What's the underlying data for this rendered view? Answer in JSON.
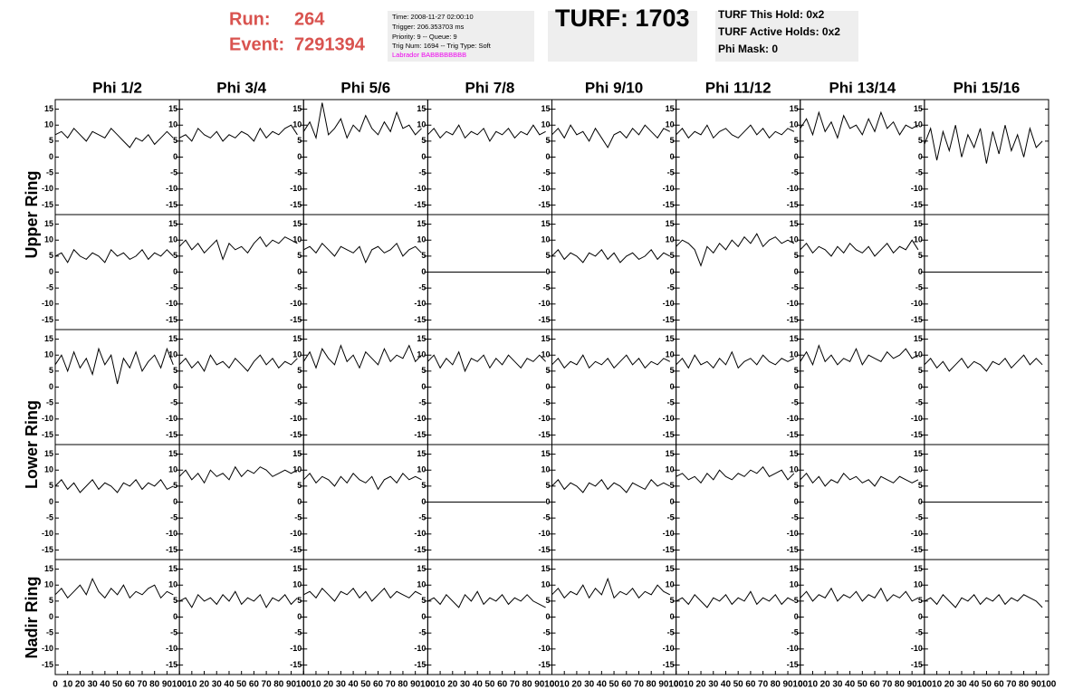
{
  "header": {
    "run_label": "Run:",
    "run": "264",
    "event_label": "Event:",
    "event": "7291394",
    "info": [
      "Time: 2008-11-27 02:00:10",
      "Trigger: 206.353703 ms",
      "Priority: 9 -- Queue: 9",
      "Trig Num: 1694 -- Trig Type: Soft"
    ],
    "labrador": "Labrador BABBBBBBBB",
    "turf": "TURF: 1703",
    "turf_info": [
      "TURF This Hold: 0x2",
      "TURF Active Holds: 0x2",
      "Phi Mask: 0"
    ]
  },
  "columns": [
    "Phi 1/2",
    "Phi 3/4",
    "Phi 5/6",
    "Phi 7/8",
    "Phi 9/10",
    "Phi 11/12",
    "Phi 13/14",
    "Phi 15/16"
  ],
  "rows": [
    "Upper Ring",
    "Lower Ring",
    "Nadir Ring"
  ],
  "axes": {
    "x": [
      0,
      5,
      10,
      15,
      20,
      25,
      30,
      35,
      40,
      45,
      50,
      55,
      60,
      65,
      70,
      75,
      80,
      85,
      90,
      95
    ],
    "xlim": [
      0,
      100
    ],
    "xticks": [
      0,
      10,
      20,
      30,
      40,
      50,
      60,
      70,
      80,
      90,
      100
    ],
    "ylim": [
      -18,
      18
    ],
    "yticks": [
      -15,
      -10,
      -5,
      0,
      5,
      10,
      15
    ]
  },
  "chart_data": [
    {
      "type": "line",
      "values": [
        7,
        8,
        6,
        9,
        7,
        5,
        8,
        7,
        6,
        9,
        7,
        5,
        3,
        6,
        5,
        7,
        4,
        6,
        8,
        6
      ]
    },
    {
      "type": "line",
      "values": [
        6,
        7,
        5,
        9,
        7,
        6,
        8,
        5,
        7,
        6,
        8,
        7,
        5,
        9,
        6,
        8,
        7,
        9,
        10,
        7
      ]
    },
    {
      "type": "line",
      "values": [
        8,
        11,
        6,
        17,
        7,
        9,
        12,
        6,
        10,
        8,
        13,
        9,
        7,
        11,
        8,
        14,
        9,
        10,
        7,
        9
      ]
    },
    {
      "type": "line",
      "values": [
        7,
        9,
        6,
        8,
        7,
        10,
        6,
        8,
        7,
        9,
        5,
        8,
        7,
        9,
        6,
        8,
        7,
        10,
        7,
        8
      ]
    },
    {
      "type": "line",
      "values": [
        7,
        9,
        6,
        10,
        7,
        8,
        5,
        9,
        6,
        3,
        7,
        8,
        6,
        9,
        7,
        10,
        8,
        6,
        9,
        8
      ]
    },
    {
      "type": "line",
      "values": [
        7,
        9,
        6,
        8,
        7,
        10,
        6,
        8,
        9,
        7,
        6,
        8,
        10,
        7,
        9,
        6,
        8,
        7,
        9,
        8
      ]
    },
    {
      "type": "line",
      "values": [
        9,
        12,
        7,
        14,
        8,
        11,
        6,
        13,
        9,
        10,
        7,
        12,
        8,
        14,
        9,
        11,
        7,
        10,
        9,
        10
      ]
    },
    {
      "type": "line",
      "values": [
        4,
        9,
        -1,
        8,
        2,
        10,
        0,
        7,
        3,
        9,
        -2,
        8,
        1,
        10,
        2,
        7,
        0,
        9,
        3,
        5
      ]
    },
    {
      "type": "line",
      "values": [
        5,
        6,
        3,
        7,
        5,
        4,
        6,
        5,
        3,
        7,
        5,
        6,
        4,
        5,
        7,
        4,
        6,
        5,
        7,
        5
      ]
    },
    {
      "type": "line",
      "values": [
        8,
        10,
        7,
        9,
        6,
        8,
        10,
        4,
        9,
        7,
        8,
        6,
        9,
        11,
        8,
        10,
        9,
        11,
        10,
        9
      ]
    },
    {
      "type": "line",
      "values": [
        7,
        8,
        6,
        9,
        7,
        5,
        8,
        7,
        6,
        8,
        3,
        7,
        8,
        6,
        7,
        9,
        5,
        7,
        8,
        6
      ]
    },
    {
      "type": "line",
      "values": [
        0,
        0,
        0,
        0,
        0,
        0,
        0,
        0,
        0,
        0,
        0,
        0,
        0,
        0,
        0,
        0,
        0,
        0,
        0,
        0
      ]
    },
    {
      "type": "line",
      "values": [
        5,
        7,
        4,
        6,
        5,
        3,
        6,
        5,
        7,
        4,
        6,
        3,
        5,
        6,
        4,
        5,
        7,
        4,
        6,
        5
      ]
    },
    {
      "type": "line",
      "values": [
        8,
        10,
        9,
        7,
        2,
        8,
        6,
        9,
        7,
        10,
        8,
        11,
        9,
        12,
        8,
        10,
        11,
        9,
        10,
        9
      ]
    },
    {
      "type": "line",
      "values": [
        7,
        9,
        6,
        8,
        7,
        5,
        8,
        6,
        9,
        7,
        6,
        8,
        5,
        7,
        9,
        6,
        8,
        7,
        10,
        7
      ]
    },
    {
      "type": "line",
      "values": [
        0,
        0,
        0,
        0,
        0,
        0,
        0,
        0,
        0,
        0,
        0,
        0,
        0,
        0,
        0,
        0,
        0,
        0,
        0,
        0
      ]
    },
    {
      "type": "line",
      "values": [
        7,
        10,
        5,
        11,
        6,
        9,
        4,
        12,
        7,
        10,
        1,
        9,
        6,
        11,
        5,
        8,
        10,
        6,
        12,
        7
      ]
    },
    {
      "type": "line",
      "values": [
        7,
        9,
        6,
        8,
        5,
        10,
        7,
        8,
        6,
        9,
        7,
        5,
        8,
        10,
        7,
        9,
        6,
        8,
        7,
        9
      ]
    },
    {
      "type": "line",
      "values": [
        8,
        11,
        6,
        12,
        9,
        7,
        13,
        8,
        10,
        6,
        11,
        9,
        7,
        12,
        8,
        10,
        9,
        13,
        8,
        10
      ]
    },
    {
      "type": "line",
      "values": [
        8,
        10,
        6,
        9,
        7,
        11,
        5,
        9,
        8,
        10,
        6,
        9,
        7,
        10,
        8,
        6,
        9,
        8,
        10,
        8
      ]
    },
    {
      "type": "line",
      "values": [
        7,
        9,
        6,
        8,
        7,
        10,
        6,
        8,
        7,
        9,
        6,
        8,
        10,
        7,
        9,
        6,
        8,
        7,
        9,
        8
      ]
    },
    {
      "type": "line",
      "values": [
        7,
        9,
        6,
        10,
        7,
        8,
        6,
        9,
        7,
        11,
        6,
        8,
        9,
        7,
        10,
        8,
        7,
        9,
        8,
        9
      ]
    },
    {
      "type": "line",
      "values": [
        8,
        11,
        7,
        13,
        8,
        10,
        7,
        9,
        8,
        12,
        7,
        10,
        9,
        8,
        11,
        9,
        10,
        12,
        9,
        10
      ]
    },
    {
      "type": "line",
      "values": [
        7,
        9,
        6,
        8,
        5,
        7,
        9,
        6,
        8,
        7,
        5,
        8,
        7,
        9,
        6,
        8,
        10,
        7,
        9,
        7
      ]
    },
    {
      "type": "line",
      "values": [
        5,
        7,
        4,
        6,
        3,
        5,
        7,
        4,
        6,
        5,
        3,
        6,
        5,
        7,
        4,
        6,
        5,
        7,
        4,
        5
      ]
    },
    {
      "type": "line",
      "values": [
        8,
        10,
        7,
        9,
        6,
        10,
        8,
        9,
        7,
        11,
        8,
        10,
        9,
        11,
        10,
        8,
        9,
        10,
        9,
        10
      ]
    },
    {
      "type": "line",
      "values": [
        7,
        9,
        6,
        8,
        7,
        5,
        8,
        6,
        9,
        7,
        6,
        8,
        4,
        7,
        8,
        6,
        9,
        7,
        8,
        7
      ]
    },
    {
      "type": "line",
      "values": [
        0,
        0,
        0,
        0,
        0,
        0,
        0,
        0,
        0,
        0,
        0,
        0,
        0,
        0,
        0,
        0,
        0,
        0,
        0,
        0
      ]
    },
    {
      "type": "line",
      "values": [
        5,
        7,
        4,
        6,
        5,
        3,
        6,
        5,
        7,
        4,
        6,
        5,
        3,
        6,
        5,
        4,
        7,
        5,
        6,
        5
      ]
    },
    {
      "type": "line",
      "values": [
        8,
        9,
        7,
        8,
        6,
        9,
        7,
        10,
        8,
        7,
        9,
        8,
        10,
        9,
        11,
        8,
        9,
        10,
        7,
        9
      ]
    },
    {
      "type": "line",
      "values": [
        7,
        9,
        6,
        8,
        5,
        7,
        6,
        9,
        7,
        8,
        6,
        7,
        5,
        8,
        7,
        6,
        8,
        7,
        6,
        7
      ]
    },
    {
      "type": "line",
      "values": [
        0,
        0,
        0,
        0,
        0,
        0,
        0,
        0,
        0,
        0,
        0,
        0,
        0,
        0,
        0,
        0,
        0,
        0,
        0,
        0
      ]
    },
    {
      "type": "line",
      "values": [
        7,
        9,
        6,
        8,
        10,
        7,
        12,
        8,
        6,
        9,
        7,
        10,
        6,
        8,
        7,
        9,
        10,
        6,
        8,
        7
      ]
    },
    {
      "type": "line",
      "values": [
        5,
        6,
        3,
        7,
        5,
        6,
        4,
        7,
        5,
        8,
        4,
        6,
        5,
        7,
        3,
        6,
        5,
        7,
        4,
        6
      ]
    },
    {
      "type": "line",
      "values": [
        7,
        8,
        6,
        9,
        7,
        5,
        8,
        7,
        9,
        6,
        8,
        5,
        7,
        9,
        6,
        8,
        7,
        6,
        8,
        7
      ]
    },
    {
      "type": "line",
      "values": [
        5,
        6,
        4,
        7,
        5,
        3,
        7,
        5,
        8,
        4,
        6,
        5,
        7,
        4,
        6,
        5,
        7,
        5,
        4,
        3
      ]
    },
    {
      "type": "line",
      "values": [
        7,
        9,
        6,
        8,
        7,
        10,
        6,
        9,
        7,
        12,
        6,
        8,
        7,
        9,
        6,
        8,
        7,
        10,
        8,
        7
      ]
    },
    {
      "type": "line",
      "values": [
        5,
        6,
        4,
        7,
        5,
        3,
        6,
        5,
        7,
        4,
        6,
        5,
        8,
        4,
        6,
        5,
        7,
        4,
        6,
        5
      ]
    },
    {
      "type": "line",
      "values": [
        6,
        8,
        5,
        7,
        6,
        9,
        5,
        7,
        6,
        8,
        5,
        7,
        6,
        9,
        5,
        7,
        6,
        8,
        5,
        6
      ]
    },
    {
      "type": "line",
      "values": [
        5,
        6,
        4,
        7,
        5,
        3,
        6,
        5,
        7,
        4,
        6,
        5,
        7,
        4,
        6,
        5,
        7,
        6,
        5,
        3
      ]
    }
  ]
}
